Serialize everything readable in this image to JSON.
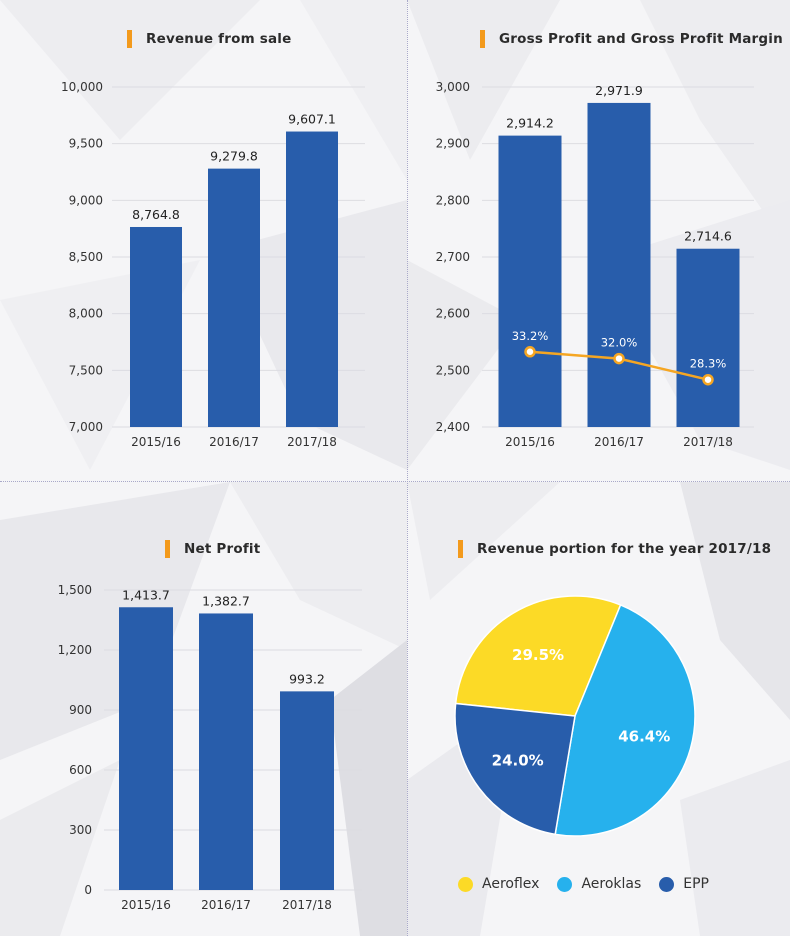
{
  "colors": {
    "bar": "#285dab",
    "margin_line": "#f5a623",
    "accent": "#f39a1c",
    "aeroflex": "#fcda26",
    "aeroklas": "#26b1ed",
    "epp": "#285dab"
  },
  "chart_data": [
    {
      "id": "revenue",
      "type": "bar",
      "title": "Revenue from sale",
      "categories": [
        "2015/16",
        "2016/17",
        "2017/18"
      ],
      "values": [
        8764.8,
        9279.8,
        9607.1
      ],
      "value_labels": [
        "8,764.8",
        "9,279.8",
        "9,607.1"
      ],
      "ylim": [
        7000,
        10000
      ],
      "yticks": [
        7000,
        7500,
        8000,
        8500,
        9000,
        9500,
        10000
      ],
      "ytick_labels": [
        "7,000",
        "7,500",
        "8,000",
        "8,500",
        "9,000",
        "9,500",
        "10,000"
      ],
      "grid": true
    },
    {
      "id": "gross",
      "type": "bar",
      "title": "Gross Profit and Gross Profit Margin",
      "categories": [
        "2015/16",
        "2016/17",
        "2017/18"
      ],
      "values": [
        2914.2,
        2971.9,
        2714.6
      ],
      "value_labels": [
        "2,914.2",
        "2,971.9",
        "2,714.6"
      ],
      "ylim": [
        2400,
        3000
      ],
      "yticks": [
        2400,
        2500,
        2600,
        2700,
        2800,
        2900,
        3000
      ],
      "ytick_labels": [
        "2,400",
        "2,500",
        "2,600",
        "2,700",
        "2,800",
        "2,900",
        "3,000"
      ],
      "grid": true,
      "margin_series": {
        "values": [
          33.2,
          32.0,
          28.3
        ],
        "labels": [
          "33.2%",
          "32.0%",
          "28.3%"
        ]
      }
    },
    {
      "id": "net",
      "type": "bar",
      "title": "Net Profit",
      "categories": [
        "2015/16",
        "2016/17",
        "2017/18"
      ],
      "values": [
        1413.7,
        1382.7,
        993.2
      ],
      "value_labels": [
        "1,413.7",
        "1,382.7",
        "993.2"
      ],
      "ylim": [
        0,
        1500
      ],
      "yticks": [
        0,
        300,
        600,
        900,
        1200,
        1500
      ],
      "ytick_labels": [
        "0",
        "300",
        "600",
        "900",
        "1,200",
        "1,500"
      ],
      "grid": true
    },
    {
      "id": "portion",
      "type": "pie",
      "title": "Revenue portion for the year 2017/18",
      "slices": [
        {
          "name": "Aeroflex",
          "value": 29.5,
          "label": "29.5%",
          "color": "#fcda26"
        },
        {
          "name": "Aeroklas",
          "value": 46.4,
          "label": "46.4%",
          "color": "#26b1ed"
        },
        {
          "name": "EPP",
          "value": 24.0,
          "label": "24.0%",
          "color": "#285dab"
        }
      ],
      "legend_position": "bottom"
    }
  ]
}
